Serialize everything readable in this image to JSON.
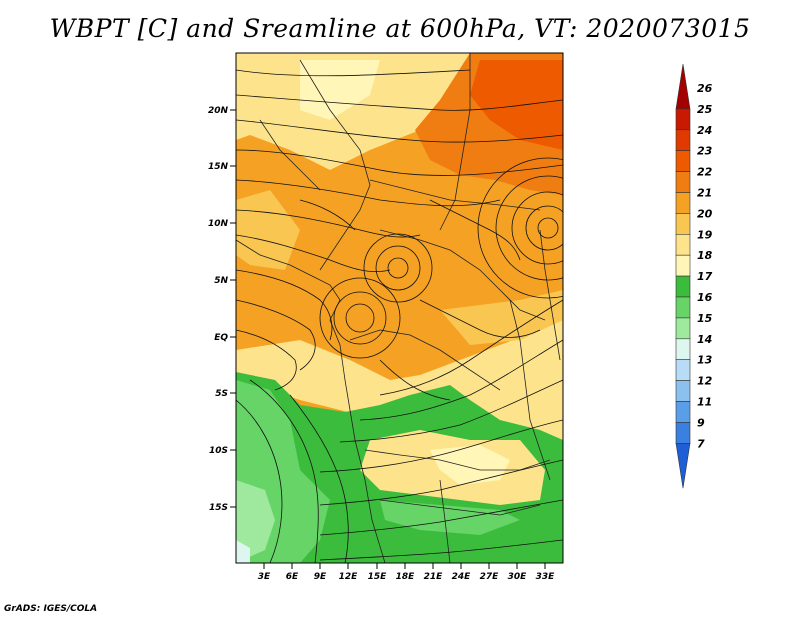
{
  "title": "WBPT [C] and Sreamline at 600hPa, VT: 2020073015",
  "credit": "GrADS: IGES/COLA",
  "map": {
    "lat_labels": [
      "20N",
      "15N",
      "10N",
      "5N",
      "EQ",
      "5S",
      "10S",
      "15S"
    ],
    "lon_labels": [
      "3E",
      "6E",
      "9E",
      "12E",
      "15E",
      "18E",
      "21E",
      "24E",
      "27E",
      "30E",
      "33E"
    ]
  },
  "colorbar": {
    "labels": [
      "26",
      "25",
      "24",
      "23",
      "22",
      "21",
      "20",
      "19",
      "18",
      "17",
      "16",
      "15",
      "14",
      "13",
      "12",
      "11",
      "9",
      "7"
    ],
    "colors": [
      "#a50000",
      "#c81a00",
      "#e03a00",
      "#ee5a00",
      "#f07d12",
      "#f5a123",
      "#f8c651",
      "#fde48c",
      "#fff6b8",
      "#3cbc3c",
      "#66d466",
      "#9ee99e",
      "#ddf6f0",
      "#b8dcf5",
      "#8cc0ee",
      "#5a9ee8",
      "#3a80e0",
      "#1e5fd8"
    ]
  }
}
